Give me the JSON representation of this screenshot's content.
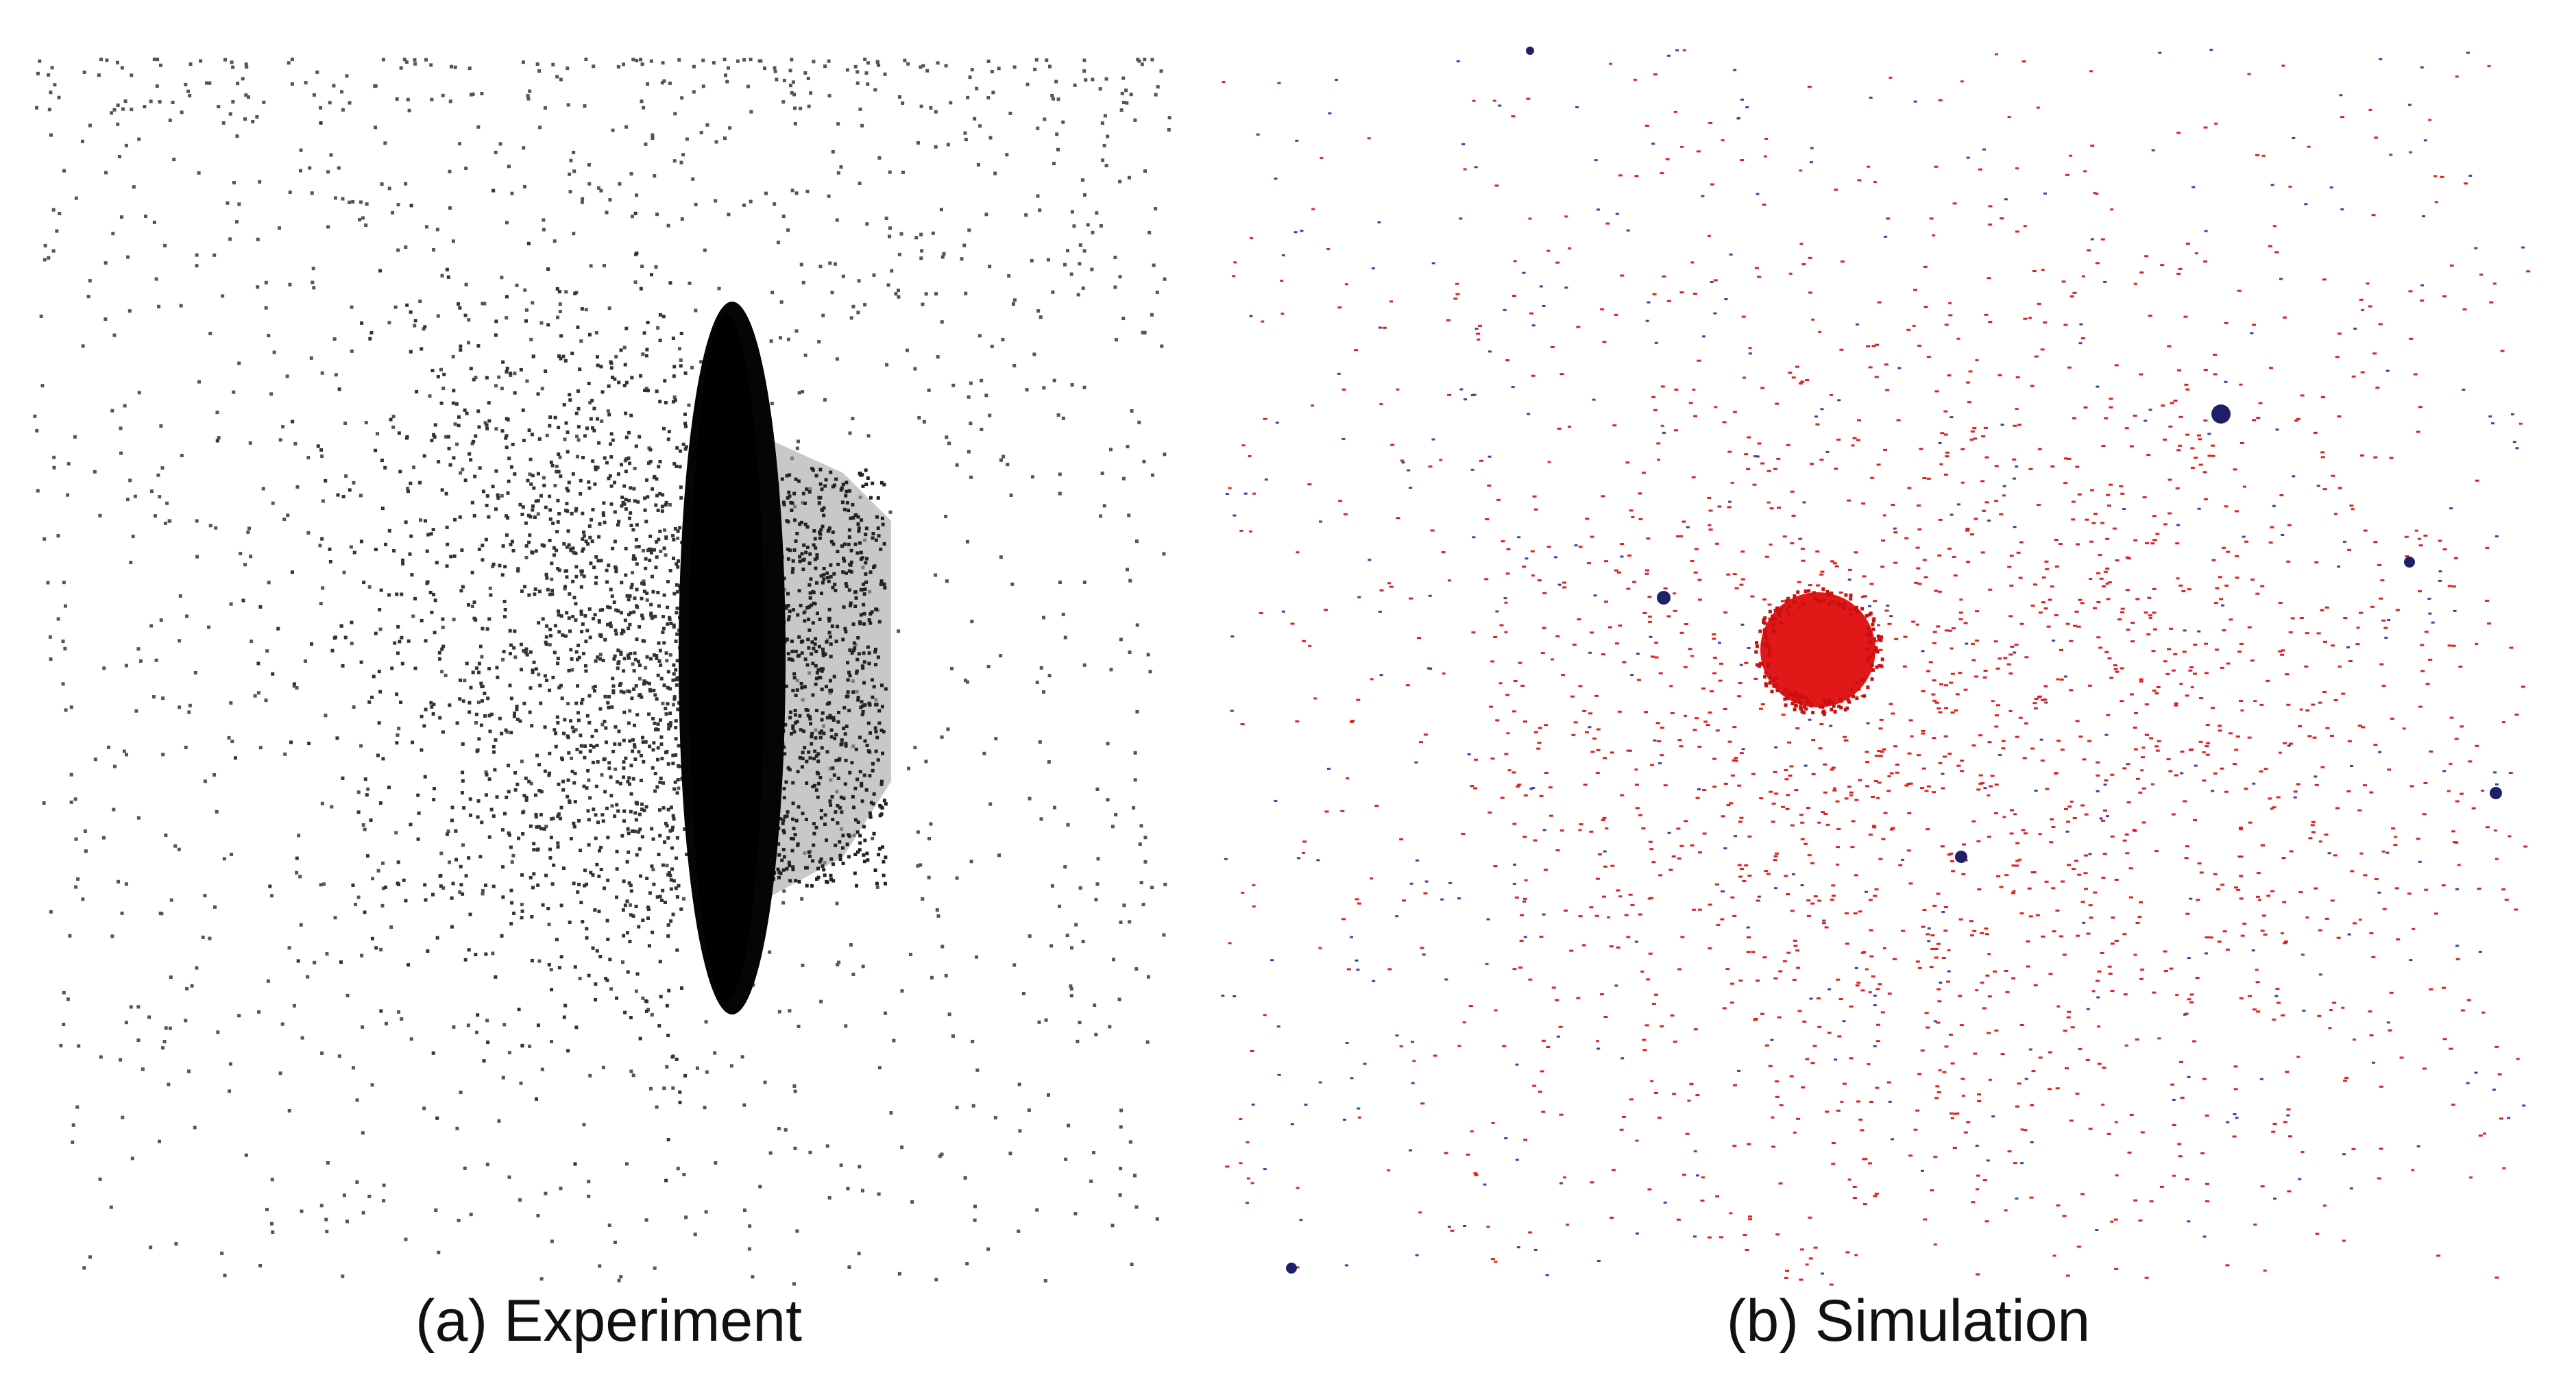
{
  "panels": [
    {
      "caption": "(a) Experiment"
    },
    {
      "caption": "(b) Simulation"
    }
  ]
}
